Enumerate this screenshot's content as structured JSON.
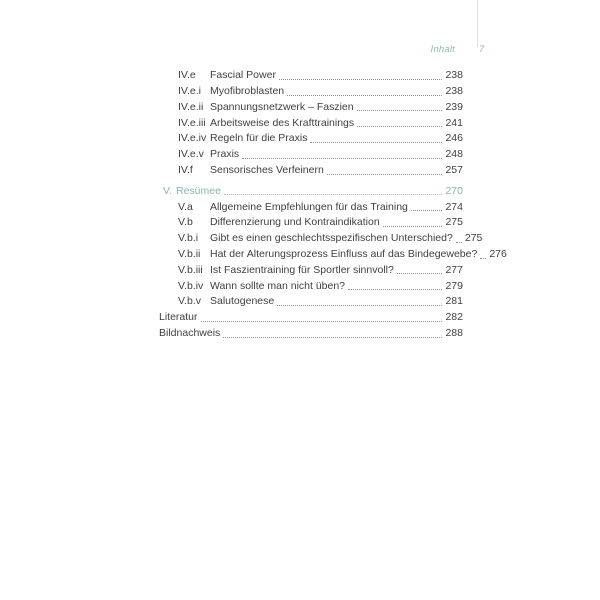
{
  "header": {
    "section_label": "Inhalt",
    "page_number": "7"
  },
  "colors": {
    "accent_teal": "#85b6b3",
    "body_text": "#3f3f3f",
    "dot_leader": "#8f8f8f",
    "header_rule": "#d8e3e1"
  },
  "toc": {
    "entries": [
      {
        "label": "IV.e",
        "title": "Fascial Power",
        "page": "238",
        "level": "sub",
        "accent": false,
        "gap_before": false
      },
      {
        "label": "IV.e.i",
        "title": "Myofibroblasten",
        "page": "238",
        "level": "sub",
        "accent": false,
        "gap_before": false
      },
      {
        "label": "IV.e.ii",
        "title": "Spannungsnetzwerk – Faszien",
        "page": "239",
        "level": "sub",
        "accent": false,
        "gap_before": false
      },
      {
        "label": "IV.e.iii",
        "title": "Arbeitsweise des Krafttrainings",
        "page": "241",
        "level": "sub",
        "accent": false,
        "gap_before": false
      },
      {
        "label": "IV.e.iv",
        "title": "Regeln für die Praxis",
        "page": "246",
        "level": "sub",
        "accent": false,
        "gap_before": false
      },
      {
        "label": "IV.e.v",
        "title": "Praxis",
        "page": "248",
        "level": "sub",
        "accent": false,
        "gap_before": false
      },
      {
        "label": "IV.f",
        "title": "Sensorisches Verfeinern",
        "page": "257",
        "level": "sub",
        "accent": false,
        "gap_before": false
      },
      {
        "label": "V.",
        "title": "Resümee",
        "page": "270",
        "level": "chapter",
        "accent": true,
        "gap_before": true
      },
      {
        "label": "V.a",
        "title": "Allgemeine Empfehlungen für das Training",
        "page": "274",
        "level": "sub",
        "accent": false,
        "gap_before": false
      },
      {
        "label": "V.b",
        "title": "Differenzierung und Kontraindikation",
        "page": "275",
        "level": "sub",
        "accent": false,
        "gap_before": false
      },
      {
        "label": "V.b.i",
        "title": "Gibt es einen geschlechtsspezifischen Unterschied?",
        "page": "275",
        "level": "sub",
        "accent": false,
        "gap_before": false
      },
      {
        "label": "V.b.ii",
        "title": "Hat der Alterungsprozess Einfluss auf das Bindegewebe?",
        "page": "276",
        "level": "sub",
        "accent": false,
        "gap_before": false
      },
      {
        "label": "V.b.iii",
        "title": "Ist Faszientraining für Sportler sinnvoll?",
        "page": "277",
        "level": "sub",
        "accent": false,
        "gap_before": false
      },
      {
        "label": "V.b.iv",
        "title": "Wann sollte man nicht üben?",
        "page": "279",
        "level": "sub",
        "accent": false,
        "gap_before": false
      },
      {
        "label": "V.b.v",
        "title": "Salutogenese",
        "page": "281",
        "level": "sub",
        "accent": false,
        "gap_before": false
      },
      {
        "label": "",
        "title": "Literatur",
        "page": "282",
        "level": "plain",
        "accent": false,
        "gap_before": false
      },
      {
        "label": "",
        "title": "Bildnachweis",
        "page": "288",
        "level": "plain",
        "accent": false,
        "gap_before": false
      }
    ]
  }
}
